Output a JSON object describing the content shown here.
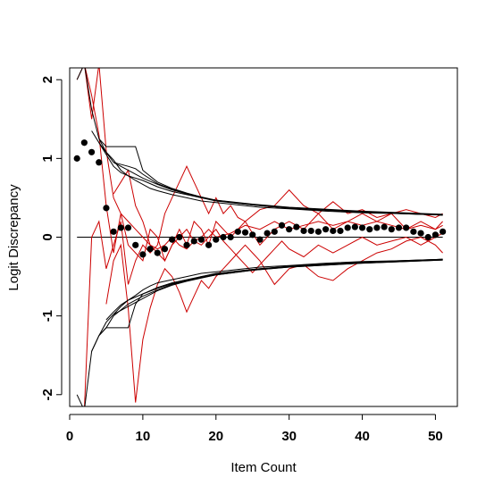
{
  "chart_data": {
    "type": "line",
    "title": "",
    "xlabel": "Item Count",
    "ylabel": "Logit Discrepancy",
    "xlim": [
      0,
      53
    ],
    "ylim": [
      -2.15,
      2.15
    ],
    "xticks": [
      0,
      10,
      20,
      30,
      40,
      50
    ],
    "yticks": [
      -2,
      -1,
      0,
      1,
      2
    ],
    "xtick_labels": [
      "0",
      "10",
      "20",
      "30",
      "40",
      "50"
    ],
    "ytick_labels": [
      "-2",
      "-1",
      "0",
      "1",
      "2"
    ],
    "grid": false,
    "legend": "none",
    "colors": {
      "points": "#000000",
      "bounds": "#000000",
      "trajectories": "#cc0000",
      "reference": "#000000"
    },
    "reference_line": {
      "y": 0,
      "x_range": [
        1,
        51
      ]
    },
    "mean_points": {
      "x": [
        1,
        2,
        3,
        4,
        5,
        6,
        7,
        8,
        9,
        10,
        11,
        12,
        13,
        14,
        15,
        16,
        17,
        18,
        19,
        20,
        21,
        22,
        23,
        24,
        25,
        26,
        27,
        28,
        29,
        30,
        31,
        32,
        33,
        34,
        35,
        36,
        37,
        38,
        39,
        40,
        41,
        42,
        43,
        44,
        45,
        46,
        47,
        48,
        49,
        50,
        51
      ],
      "y": [
        1.0,
        1.2,
        1.08,
        0.95,
        0.37,
        0.07,
        0.12,
        0.12,
        -0.1,
        -0.22,
        -0.15,
        -0.2,
        -0.15,
        -0.03,
        0.0,
        -0.1,
        -0.05,
        -0.03,
        -0.1,
        -0.03,
        0.0,
        0.0,
        0.07,
        0.06,
        0.03,
        -0.03,
        0.05,
        0.07,
        0.15,
        0.1,
        0.13,
        0.08,
        0.08,
        0.07,
        0.1,
        0.08,
        0.08,
        0.12,
        0.13,
        0.12,
        0.1,
        0.12,
        0.13,
        0.1,
        0.12,
        0.12,
        0.07,
        0.05,
        0.0,
        0.03,
        0.07
      ]
    },
    "bound_curves": [
      {
        "x": [
          1,
          2,
          3,
          4,
          5,
          6,
          7,
          8,
          9,
          10,
          11,
          12,
          14,
          16,
          18,
          20,
          23,
          26,
          30,
          35,
          40,
          45,
          51
        ],
        "y": [
          2.0,
          2.2,
          1.62,
          1.25,
          1.08,
          0.98,
          0.85,
          0.78,
          0.72,
          0.67,
          0.62,
          0.59,
          0.54,
          0.5,
          0.46,
          0.44,
          0.41,
          0.38,
          0.36,
          0.33,
          0.31,
          0.3,
          0.28
        ]
      },
      {
        "x": [
          3,
          4,
          6,
          8,
          10,
          12,
          14,
          16,
          18,
          20,
          23,
          26,
          30,
          35,
          40,
          45,
          51
        ],
        "y": [
          1.35,
          1.2,
          0.95,
          0.85,
          0.75,
          0.67,
          0.6,
          0.55,
          0.5,
          0.47,
          0.43,
          0.4,
          0.37,
          0.34,
          0.32,
          0.3,
          0.28
        ]
      },
      {
        "x": [
          4,
          5,
          6,
          7,
          8,
          10,
          12,
          14,
          16,
          18,
          20,
          25,
          30,
          40,
          51
        ],
        "y": [
          1.2,
          1.05,
          0.9,
          0.82,
          0.78,
          0.72,
          0.64,
          0.58,
          0.54,
          0.5,
          0.46,
          0.41,
          0.37,
          0.32,
          0.28
        ]
      },
      {
        "x": [
          4,
          5,
          6,
          7,
          8,
          9,
          10,
          12,
          14,
          16,
          18,
          20,
          25,
          30,
          40,
          51
        ],
        "y": [
          1.25,
          1.15,
          1.15,
          1.15,
          1.15,
          1.15,
          0.85,
          0.7,
          0.62,
          0.56,
          0.51,
          0.47,
          0.41,
          0.37,
          0.32,
          0.28
        ]
      },
      {
        "x": [
          6,
          8,
          9,
          10,
          12,
          14,
          16,
          18,
          20,
          25,
          30,
          40,
          51
        ],
        "y": [
          0.95,
          0.9,
          0.87,
          0.8,
          0.68,
          0.61,
          0.55,
          0.5,
          0.47,
          0.42,
          0.38,
          0.33,
          0.29
        ]
      },
      {
        "x": [
          1,
          2,
          3,
          4,
          5,
          6,
          7,
          8,
          9,
          10,
          11,
          12,
          14,
          16,
          18,
          20,
          23,
          26,
          30,
          35,
          40,
          45,
          51
        ],
        "y": [
          -2.0,
          -2.2,
          -1.45,
          -1.25,
          -1.08,
          -0.98,
          -0.88,
          -0.8,
          -0.74,
          -0.67,
          -0.62,
          -0.58,
          -0.54,
          -0.5,
          -0.46,
          -0.44,
          -0.41,
          -0.38,
          -0.36,
          -0.33,
          -0.31,
          -0.3,
          -0.28
        ]
      },
      {
        "x": [
          3,
          4,
          5,
          6,
          8,
          10,
          12,
          14,
          16,
          18,
          20,
          23,
          26,
          30,
          35,
          40,
          45,
          51
        ],
        "y": [
          -1.45,
          -1.25,
          -1.15,
          -1.0,
          -0.85,
          -0.75,
          -0.67,
          -0.6,
          -0.55,
          -0.5,
          -0.47,
          -0.43,
          -0.4,
          -0.37,
          -0.34,
          -0.32,
          -0.3,
          -0.28
        ]
      },
      {
        "x": [
          4,
          5,
          6,
          7,
          8,
          9,
          10,
          12,
          14,
          16,
          18,
          20,
          25,
          30,
          40,
          51
        ],
        "y": [
          -1.25,
          -1.15,
          -1.15,
          -1.15,
          -1.15,
          -0.85,
          -0.72,
          -0.64,
          -0.58,
          -0.54,
          -0.5,
          -0.46,
          -0.41,
          -0.37,
          -0.32,
          -0.28
        ]
      },
      {
        "x": [
          5,
          6,
          7,
          8,
          9,
          10,
          12,
          14,
          16,
          18,
          20,
          25,
          30,
          40,
          51
        ],
        "y": [
          -1.05,
          -0.95,
          -0.86,
          -0.8,
          -0.76,
          -0.72,
          -0.65,
          -0.59,
          -0.55,
          -0.51,
          -0.48,
          -0.42,
          -0.38,
          -0.33,
          -0.29
        ]
      },
      {
        "x": [
          6,
          8,
          10,
          12,
          14,
          16,
          18,
          20,
          25,
          30,
          40,
          51
        ],
        "y": [
          -0.98,
          -0.88,
          -0.78,
          -0.68,
          -0.61,
          -0.56,
          -0.52,
          -0.48,
          -0.42,
          -0.38,
          -0.33,
          -0.29
        ]
      }
    ],
    "trajectories": [
      {
        "x": [
          1,
          2,
          3,
          4,
          5,
          6,
          7,
          8,
          9,
          10,
          11,
          12,
          13,
          14,
          15,
          16,
          17,
          18,
          19,
          20,
          22,
          24,
          26,
          28,
          30,
          32,
          34,
          36,
          38,
          40,
          42,
          44,
          46,
          48,
          50,
          51
        ],
        "y": [
          2.0,
          2.2,
          1.5,
          2.2,
          1.1,
          0.5,
          0.3,
          0.2,
          0.1,
          0.0,
          -0.1,
          -0.15,
          -0.1,
          0.0,
          -0.1,
          -0.15,
          -0.05,
          0.0,
          0.1,
          0.0,
          0.05,
          0.15,
          0.1,
          0.2,
          0.1,
          0.15,
          0.2,
          0.15,
          0.2,
          0.15,
          0.2,
          0.15,
          0.1,
          0.15,
          0.1,
          0.15
        ]
      },
      {
        "x": [
          2,
          3,
          4,
          5,
          6,
          7,
          8,
          9,
          10,
          11,
          12,
          13,
          14,
          15,
          16,
          17,
          18,
          19,
          20,
          22,
          24,
          26,
          28,
          30,
          32,
          34,
          36,
          38,
          40,
          42,
          44,
          46,
          48,
          50,
          51
        ],
        "y": [
          2.2,
          1.8,
          1.3,
          0.4,
          -0.2,
          0.3,
          -0.1,
          -0.2,
          -0.3,
          0.1,
          0.0,
          -0.3,
          -0.1,
          0.1,
          -0.1,
          0.2,
          0.1,
          -0.1,
          0.2,
          0.0,
          0.2,
          -0.1,
          0.1,
          0.2,
          0.1,
          0.3,
          0.1,
          0.2,
          0.3,
          0.2,
          0.3,
          0.1,
          0.2,
          0.1,
          0.2
        ]
      },
      {
        "x": [
          2,
          3,
          4,
          5,
          6,
          7,
          8,
          9,
          10,
          11,
          12,
          13,
          14,
          15,
          16,
          17,
          18,
          19,
          20,
          21,
          22,
          23,
          24,
          26,
          28,
          30,
          32,
          34,
          36,
          38,
          40,
          42,
          44,
          46,
          48,
          50,
          51
        ],
        "y": [
          -2.2,
          0.0,
          0.2,
          -0.4,
          -0.1,
          0.2,
          -0.6,
          -0.3,
          -0.1,
          -0.2,
          -0.1,
          0.3,
          0.5,
          0.7,
          0.9,
          0.7,
          0.5,
          0.3,
          0.5,
          0.3,
          0.4,
          0.25,
          0.2,
          0.35,
          0.4,
          0.6,
          0.4,
          0.3,
          0.45,
          0.3,
          0.35,
          0.25,
          0.3,
          0.35,
          0.3,
          0.25,
          0.3
        ]
      },
      {
        "x": [
          5,
          6,
          7,
          8,
          9,
          10,
          11,
          12,
          13,
          14,
          15,
          16,
          17,
          18,
          19,
          20,
          21,
          22,
          23,
          24,
          25,
          26,
          28,
          30,
          32,
          34,
          36,
          38,
          40,
          42,
          44,
          46,
          48,
          50,
          51
        ],
        "y": [
          -0.85,
          -0.3,
          -0.1,
          -0.9,
          -2.1,
          -1.3,
          -0.9,
          -0.6,
          -0.4,
          -0.5,
          -0.7,
          -0.95,
          -0.75,
          -0.55,
          -0.65,
          -0.5,
          -0.4,
          -0.3,
          -0.2,
          -0.1,
          -0.2,
          -0.3,
          -0.6,
          -0.4,
          -0.35,
          -0.5,
          -0.55,
          -0.4,
          -0.3,
          -0.2,
          -0.15,
          -0.05,
          0.0,
          -0.1,
          -0.2
        ]
      },
      {
        "x": [
          6,
          7,
          8,
          9,
          10,
          11,
          12,
          13,
          14,
          15,
          16,
          17,
          18,
          19,
          20,
          21,
          22,
          23,
          24,
          25,
          26,
          27,
          28,
          29,
          30,
          32,
          34,
          36,
          38,
          40,
          42,
          44,
          46,
          48,
          50,
          51
        ],
        "y": [
          0.55,
          0.7,
          0.85,
          0.4,
          0.2,
          -0.1,
          -0.2,
          -0.3,
          -0.1,
          0.0,
          0.1,
          -0.05,
          -0.1,
          0.0,
          0.1,
          -0.05,
          -0.15,
          -0.25,
          -0.35,
          -0.45,
          -0.35,
          -0.25,
          -0.15,
          -0.05,
          -0.15,
          -0.25,
          -0.1,
          -0.2,
          -0.1,
          0.0,
          -0.1,
          -0.05,
          0.0,
          -0.1,
          0.0,
          0.05
        ]
      }
    ]
  }
}
